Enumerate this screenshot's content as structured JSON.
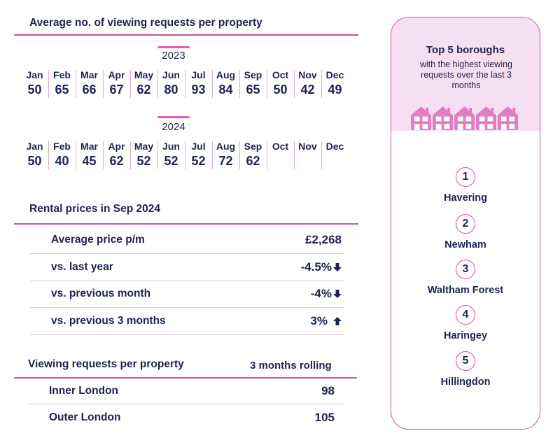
{
  "chart_data": [
    {
      "type": "table",
      "title": "Average no. of viewing requests per property",
      "months": [
        "Jan",
        "Feb",
        "Mar",
        "Apr",
        "May",
        "Jun",
        "Jul",
        "Aug",
        "Sep",
        "Oct",
        "Nov",
        "Dec"
      ],
      "series": [
        {
          "name": "2023",
          "values": [
            50,
            65,
            66,
            67,
            62,
            80,
            93,
            84,
            65,
            50,
            42,
            49
          ]
        },
        {
          "name": "2024",
          "values": [
            50,
            40,
            45,
            62,
            52,
            52,
            52,
            72,
            62,
            null,
            null,
            null
          ]
        }
      ]
    },
    {
      "type": "table",
      "title": "Rental prices in Sep 2024",
      "rows": [
        {
          "label": "Average price p/m",
          "value": "£2,268",
          "arrow": ""
        },
        {
          "label": "vs. last year",
          "value": "-4.5%",
          "arrow": "down"
        },
        {
          "label": "vs. previous month",
          "value": "-4%",
          "arrow": "down"
        },
        {
          "label": "vs. previous 3 months",
          "value": "3%",
          "arrow": "up"
        }
      ]
    },
    {
      "type": "table",
      "title": "Viewing requests per property",
      "column_header": "3 months rolling",
      "rows": [
        {
          "label": "Inner London",
          "value": 98
        },
        {
          "label": "Outer London",
          "value": 105
        }
      ]
    }
  ],
  "panel": {
    "title": "Top 5 boroughs",
    "subtitle": "with the highest viewing requests over the last 3 months",
    "icon": "house-icon",
    "boroughs": [
      {
        "rank": "1",
        "name": "Havering"
      },
      {
        "rank": "2",
        "name": "Newham"
      },
      {
        "rank": "3",
        "name": "Waltham Forest"
      },
      {
        "rank": "4",
        "name": "Haringey"
      },
      {
        "rank": "5",
        "name": "Hillingdon"
      }
    ]
  },
  "colors": {
    "accent": "#d14fa3",
    "text": "#1e2350",
    "panel_bg": "#f6dff0",
    "house": "#e47cc4"
  }
}
